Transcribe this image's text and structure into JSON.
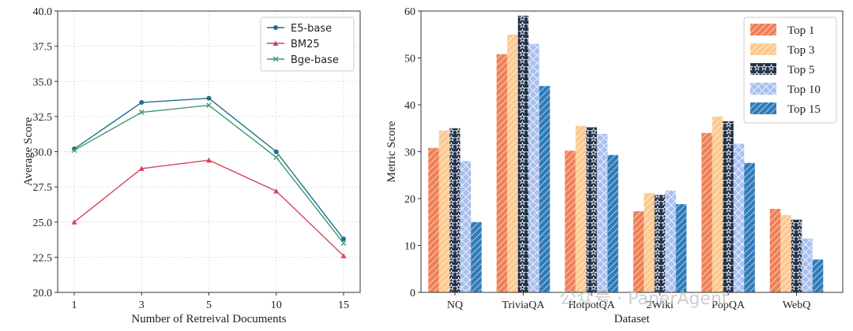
{
  "chart_data": [
    {
      "type": "line",
      "x": [
        "1",
        "3",
        "5",
        "10",
        "15"
      ],
      "series": [
        {
          "name": "E5-base",
          "values": [
            30.2,
            33.5,
            33.8,
            30.0,
            23.8
          ],
          "color": "#1f6f8b",
          "marker": "circle"
        },
        {
          "name": "BM25",
          "values": [
            25.0,
            28.8,
            29.4,
            27.2,
            22.6
          ],
          "color": "#d6455a",
          "marker": "triangle"
        },
        {
          "name": "Bge-base",
          "values": [
            30.1,
            32.8,
            33.3,
            29.6,
            23.5
          ],
          "color": "#3d9970",
          "marker": "x"
        }
      ],
      "xlabel": "Number of Retreival Documents",
      "ylabel": "Average Score",
      "ylim": [
        20.0,
        40.0
      ],
      "yticks": [
        "20.0",
        "22.5",
        "25.0",
        "27.5",
        "30.0",
        "32.5",
        "35.0",
        "37.5",
        "40.0"
      ],
      "grid": true,
      "legend_position": "top-right"
    },
    {
      "type": "bar",
      "categories": [
        "NQ",
        "TriviaQA",
        "HotpotQA",
        "2Wiki",
        "PopQA",
        "WebQ"
      ],
      "series": [
        {
          "name": "Top 1",
          "values": [
            30.8,
            50.8,
            30.2,
            17.3,
            34.0,
            17.8
          ],
          "color": "#f07f55",
          "pattern": "diagonal"
        },
        {
          "name": "Top 3",
          "values": [
            34.5,
            55.0,
            35.5,
            21.2,
            37.5,
            16.5
          ],
          "color": "#fcc98f",
          "pattern": "diagonal"
        },
        {
          "name": "Top 5",
          "values": [
            35.0,
            59.0,
            35.2,
            20.8,
            36.5,
            15.5
          ],
          "color": "#23324a",
          "pattern": "stars"
        },
        {
          "name": "Top 10",
          "values": [
            28.0,
            53.0,
            33.8,
            21.7,
            31.7,
            11.5
          ],
          "color": "#a8bff0",
          "pattern": "cross"
        },
        {
          "name": "Top 15",
          "values": [
            15.0,
            44.0,
            29.3,
            18.8,
            27.6,
            7.0
          ],
          "color": "#2f7bb8",
          "pattern": "diagonal"
        }
      ],
      "xlabel": "Dataset",
      "ylabel": "Metric Score",
      "ylim": [
        0,
        60
      ],
      "yticks": [
        "0",
        "10",
        "20",
        "30",
        "40",
        "50",
        "60"
      ],
      "grid": false,
      "legend_position": "top-right"
    }
  ],
  "watermark": {
    "text": "公众号 · PaperAgent"
  }
}
